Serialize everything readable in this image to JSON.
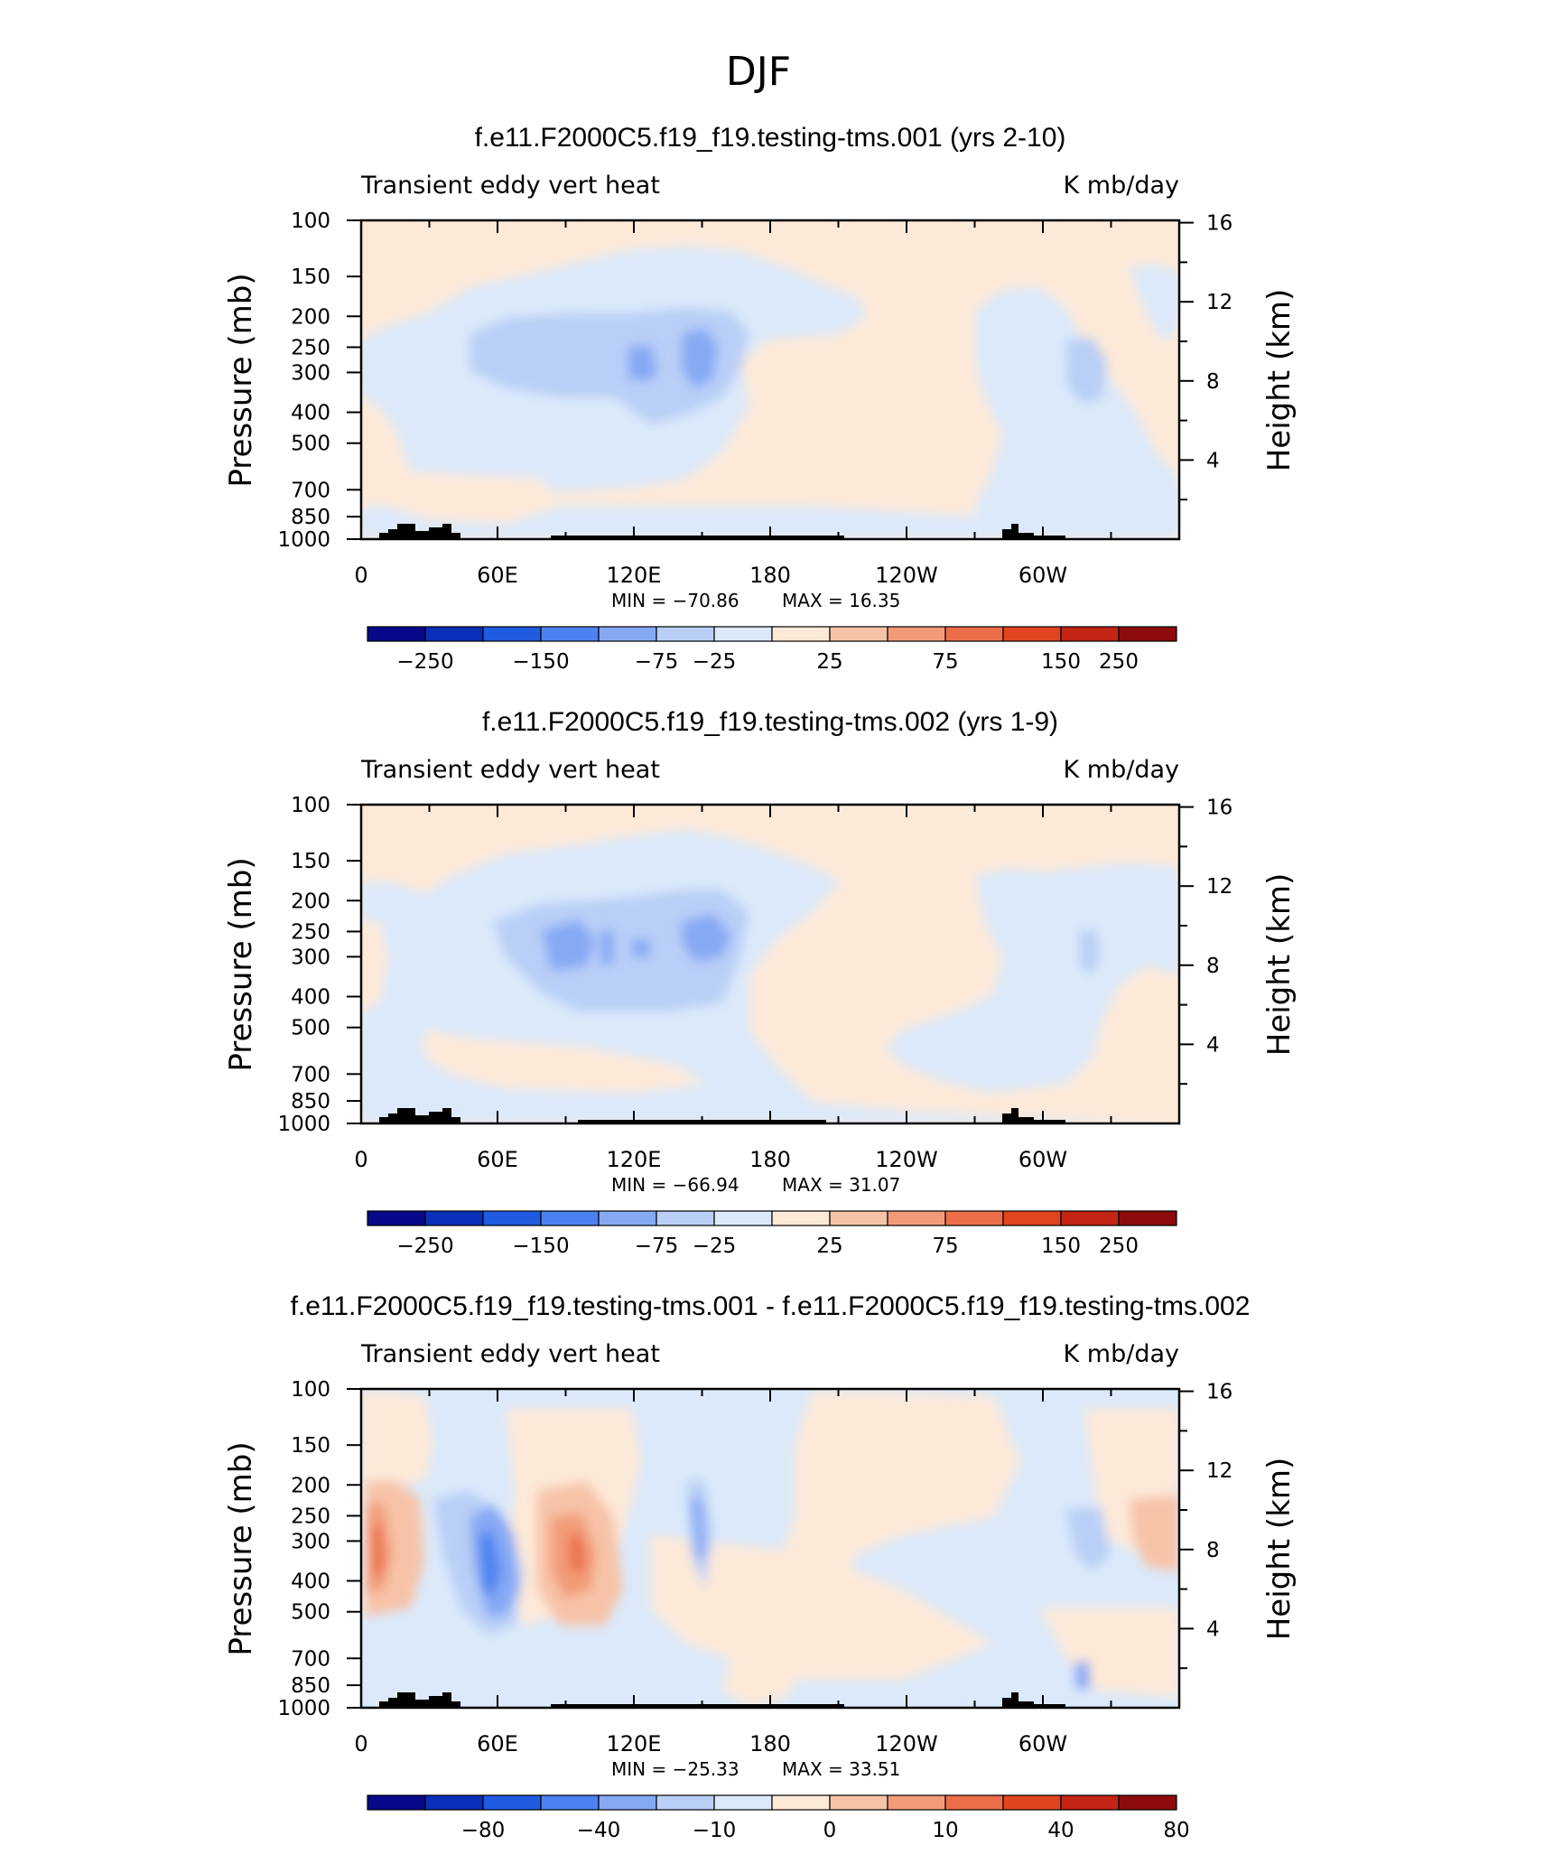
{
  "suptitle": "DJF",
  "x_ticks": [
    "0",
    "60E",
    "120E",
    "180",
    "120W",
    "60W"
  ],
  "y_ticks_pressure": [
    "100",
    "150",
    "200",
    "250",
    "300",
    "400",
    "500",
    "700",
    "850",
    "1000"
  ],
  "y_ticks_height": [
    "16",
    "12",
    "8",
    "4"
  ],
  "colors": {
    "palette": [
      "#08088a",
      "#0a2fb8",
      "#1f5be0",
      "#4b82f0",
      "#86a9f4",
      "#b9cff7",
      "#dbe9fa",
      "#fde9d8",
      "#f7c3a7",
      "#f29b78",
      "#ec6e48",
      "#e0451f",
      "#c22416",
      "#8c0c0c"
    ]
  },
  "panels": [
    {
      "title": "f.e11.F2000C5.f19_f19.testing-tms.001 (yrs 2-10)",
      "left_label": "Transient eddy vert heat",
      "right_label": "K mb/day",
      "ylabel_left": "Pressure (mb)",
      "ylabel_right": "Height (km)",
      "min_label": "MIN = −70.86",
      "max_label": "MAX =   16.35",
      "colorbar_labels": [
        "−250",
        "−150",
        "−75",
        "−25",
        "25",
        "75",
        "150",
        "250"
      ]
    },
    {
      "title": "f.e11.F2000C5.f19_f19.testing-tms.002 (yrs 1-9)",
      "left_label": "Transient eddy vert heat",
      "right_label": "K mb/day",
      "ylabel_left": "Pressure (mb)",
      "ylabel_right": "Height (km)",
      "min_label": "MIN = −66.94",
      "max_label": "MAX =   31.07",
      "colorbar_labels": [
        "−250",
        "−150",
        "−75",
        "−25",
        "25",
        "75",
        "150",
        "250"
      ]
    },
    {
      "title": "f.e11.F2000C5.f19_f19.testing-tms.001 - f.e11.F2000C5.f19_f19.testing-tms.002",
      "left_label": "Transient eddy vert heat",
      "right_label": "K mb/day",
      "ylabel_left": "Pressure (mb)",
      "ylabel_right": "Height (km)",
      "min_label": "MIN = −25.33",
      "max_label": "MAX =   33.51",
      "colorbar_labels": [
        "−80",
        "−40",
        "−10",
        "0",
        "10",
        "40",
        "80"
      ]
    }
  ],
  "chart_data": [
    {
      "type": "heatmap",
      "title": "f.e11.F2000C5.f19_f19.testing-tms.001 (yrs 2-10)",
      "xlabel": "",
      "ylabel": "Pressure (mb)",
      "ylabel_right": "Height (km)",
      "x_range": [
        0,
        360
      ],
      "y_range": [
        1000,
        100
      ],
      "y_scale": "log",
      "units": "K mb/day",
      "min": -70.86,
      "max": 16.35,
      "contour_levels": [
        -250,
        -150,
        -75,
        -25,
        25,
        75,
        150,
        250
      ]
    },
    {
      "type": "heatmap",
      "title": "f.e11.F2000C5.f19_f19.testing-tms.002 (yrs 1-9)",
      "xlabel": "",
      "ylabel": "Pressure (mb)",
      "ylabel_right": "Height (km)",
      "x_range": [
        0,
        360
      ],
      "y_range": [
        1000,
        100
      ],
      "y_scale": "log",
      "units": "K mb/day",
      "min": -66.94,
      "max": 31.07,
      "contour_levels": [
        -250,
        -150,
        -75,
        -25,
        25,
        75,
        150,
        250
      ]
    },
    {
      "type": "heatmap",
      "title": "f.e11.F2000C5.f19_f19.testing-tms.001 - f.e11.F2000C5.f19_f19.testing-tms.002",
      "xlabel": "",
      "ylabel": "Pressure (mb)",
      "ylabel_right": "Height (km)",
      "x_range": [
        0,
        360
      ],
      "y_range": [
        1000,
        100
      ],
      "y_scale": "log",
      "units": "K mb/day",
      "min": -25.33,
      "max": 33.51,
      "contour_levels": [
        -80,
        -40,
        -10,
        0,
        10,
        40,
        80
      ]
    }
  ]
}
